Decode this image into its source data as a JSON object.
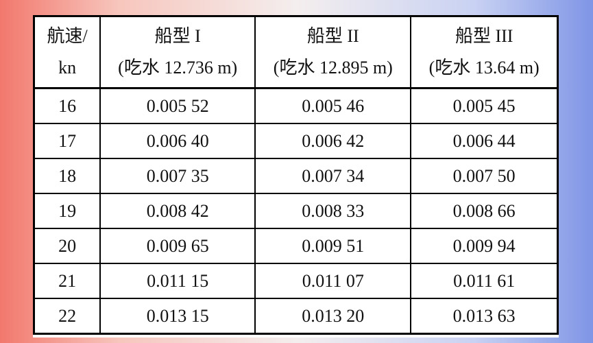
{
  "table": {
    "header": [
      [
        "航速/",
        "kn"
      ],
      [
        "船型 I",
        "(吃水 12.736 m)"
      ],
      [
        "船型 II",
        "(吃水 12.895 m)"
      ],
      [
        "船型 III",
        "(吃水 13.64 m)"
      ]
    ],
    "rows": [
      [
        "16",
        "0.005 52",
        "0.005 46",
        "0.005 45"
      ],
      [
        "17",
        "0.006 40",
        "0.006 42",
        "0.006 44"
      ],
      [
        "18",
        "0.007 35",
        "0.007 34",
        "0.007 50"
      ],
      [
        "19",
        "0.008 42",
        "0.008 33",
        "0.008 66"
      ],
      [
        "20",
        "0.009 65",
        "0.009 51",
        "0.009 94"
      ],
      [
        "21",
        "0.011 15",
        "0.011 07",
        "0.011 61"
      ],
      [
        "22",
        "0.013 15",
        "0.013 20",
        "0.013 63"
      ]
    ]
  }
}
